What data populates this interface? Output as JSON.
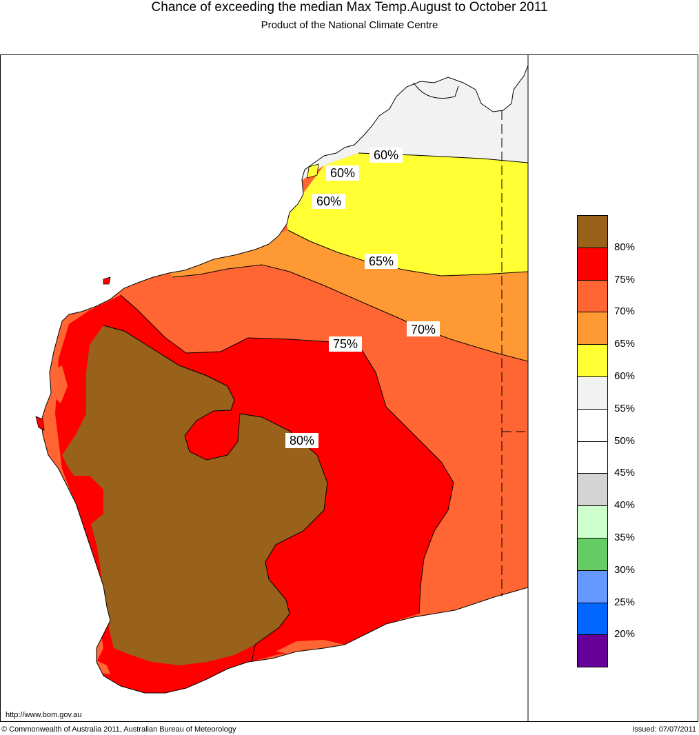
{
  "title": "Chance of exceeding the median Max Temp.August to October 2011",
  "subtitle": "Product of the National Climate Centre",
  "legend": {
    "swatches": [
      {
        "color": "#98621a",
        "name": "brown"
      },
      {
        "color": "#ff0000",
        "name": "red"
      },
      {
        "color": "#ff6633",
        "name": "orange-red"
      },
      {
        "color": "#ff9933",
        "name": "orange"
      },
      {
        "color": "#ffff33",
        "name": "yellow"
      },
      {
        "color": "#f2f2f2",
        "name": "light-grey"
      },
      {
        "color": "#ffffff",
        "name": "white"
      },
      {
        "color": "#ffffff",
        "name": "white"
      },
      {
        "color": "#d4d4d4",
        "name": "grey"
      },
      {
        "color": "#ccffcc",
        "name": "pale-green"
      },
      {
        "color": "#66cc66",
        "name": "green"
      },
      {
        "color": "#6699ff",
        "name": "light-blue"
      },
      {
        "color": "#0066ff",
        "name": "blue"
      },
      {
        "color": "#660099",
        "name": "purple"
      }
    ],
    "labels": [
      "80%",
      "75%",
      "70%",
      "65%",
      "60%",
      "55%",
      "50%",
      "45%",
      "40%",
      "35%",
      "30%",
      "25%",
      "20%"
    ]
  },
  "contours": {
    "c60a": "60%",
    "c60b": "60%",
    "c60c": "60%",
    "c65": "65%",
    "c70": "70%",
    "c75": "75%",
    "c80": "80%"
  },
  "footer": {
    "url": "http://www.bom.gov.au",
    "copyright": "© Commonwealth of Australia 2011, Australian Bureau of Meteorology",
    "issued": "Issued: 07/07/2011"
  },
  "colors": {
    "brown": "#98621a",
    "red": "#ff0000",
    "orange_red": "#ff6633",
    "orange": "#ff9933",
    "yellow": "#ffff33",
    "light_grey": "#f2f2f2"
  }
}
